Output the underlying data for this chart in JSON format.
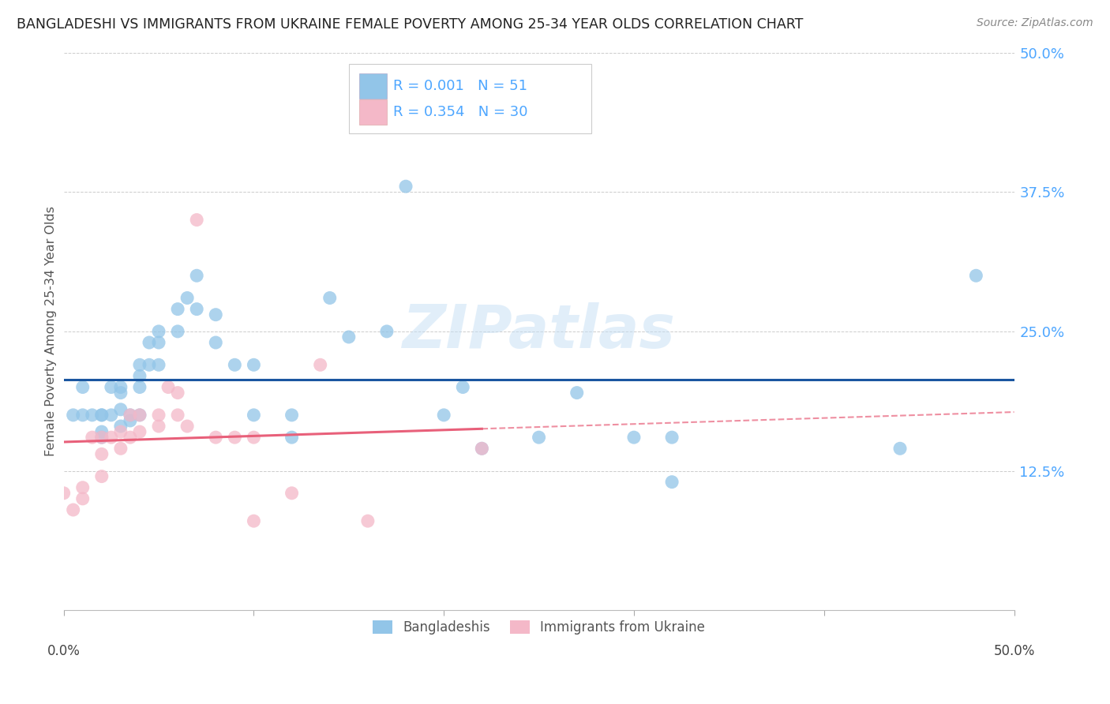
{
  "title": "BANGLADESHI VS IMMIGRANTS FROM UKRAINE FEMALE POVERTY AMONG 25-34 YEAR OLDS CORRELATION CHART",
  "source": "Source: ZipAtlas.com",
  "ylabel": "Female Poverty Among 25-34 Year Olds",
  "xlim": [
    0.0,
    0.5
  ],
  "ylim": [
    0.0,
    0.5
  ],
  "ytick_vals": [
    0.0,
    0.125,
    0.25,
    0.375,
    0.5
  ],
  "ytick_labels": [
    "",
    "12.5%",
    "25.0%",
    "37.5%",
    "50.0%"
  ],
  "xtick_vals": [
    0.0,
    0.1,
    0.2,
    0.3,
    0.4,
    0.5
  ],
  "blue_color": "#92c5e8",
  "pink_color": "#f4b8c8",
  "trend_blue_color": "#1a56a0",
  "trend_pink_color": "#e8607a",
  "watermark_text": "ZIPatlas",
  "legend_row1": "R = 0.001   N = 51",
  "legend_row2": "R = 0.354   N = 30",
  "bangladeshi_x": [
    0.005,
    0.01,
    0.01,
    0.015,
    0.02,
    0.02,
    0.02,
    0.02,
    0.025,
    0.025,
    0.03,
    0.03,
    0.03,
    0.03,
    0.035,
    0.035,
    0.04,
    0.04,
    0.04,
    0.04,
    0.045,
    0.045,
    0.05,
    0.05,
    0.05,
    0.06,
    0.06,
    0.065,
    0.07,
    0.07,
    0.08,
    0.08,
    0.09,
    0.1,
    0.1,
    0.12,
    0.12,
    0.14,
    0.15,
    0.17,
    0.18,
    0.2,
    0.21,
    0.22,
    0.25,
    0.27,
    0.3,
    0.32,
    0.32,
    0.44,
    0.48
  ],
  "bangladeshi_y": [
    0.175,
    0.2,
    0.175,
    0.175,
    0.175,
    0.175,
    0.16,
    0.155,
    0.2,
    0.175,
    0.2,
    0.195,
    0.18,
    0.165,
    0.175,
    0.17,
    0.22,
    0.21,
    0.2,
    0.175,
    0.24,
    0.22,
    0.25,
    0.24,
    0.22,
    0.27,
    0.25,
    0.28,
    0.3,
    0.27,
    0.265,
    0.24,
    0.22,
    0.22,
    0.175,
    0.175,
    0.155,
    0.28,
    0.245,
    0.25,
    0.38,
    0.175,
    0.2,
    0.145,
    0.155,
    0.195,
    0.155,
    0.155,
    0.115,
    0.145,
    0.3
  ],
  "ukraine_x": [
    0.0,
    0.005,
    0.01,
    0.01,
    0.015,
    0.02,
    0.02,
    0.02,
    0.025,
    0.03,
    0.03,
    0.035,
    0.035,
    0.04,
    0.04,
    0.05,
    0.05,
    0.055,
    0.06,
    0.06,
    0.065,
    0.07,
    0.08,
    0.09,
    0.1,
    0.1,
    0.12,
    0.135,
    0.16,
    0.22
  ],
  "ukraine_y": [
    0.105,
    0.09,
    0.11,
    0.1,
    0.155,
    0.155,
    0.14,
    0.12,
    0.155,
    0.16,
    0.145,
    0.175,
    0.155,
    0.175,
    0.16,
    0.175,
    0.165,
    0.2,
    0.195,
    0.175,
    0.165,
    0.35,
    0.155,
    0.155,
    0.155,
    0.08,
    0.105,
    0.22,
    0.08,
    0.145
  ]
}
